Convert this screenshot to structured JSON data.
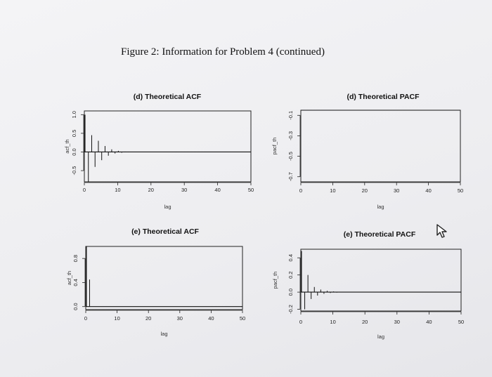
{
  "figure_title": "Figure 2: Information for Problem 4 (continued)",
  "icons": {
    "cursor": "mouse-pointer-icon"
  },
  "chart_data": [
    {
      "type": "bar",
      "title": "(d) Theoretical ACF",
      "xlabel": "lag",
      "ylabel": "acf_th",
      "xlim": [
        0,
        50
      ],
      "ylim": [
        -0.8,
        1.1
      ],
      "xticks": [
        0,
        10,
        20,
        30,
        40,
        50
      ],
      "yticks": [
        -0.5,
        0.0,
        0.5,
        1.0
      ],
      "xtick_labels": [
        "0",
        "10",
        "20",
        "30",
        "40",
        "50"
      ],
      "ytick_labels": [
        "-0.5",
        "0.0",
        "0.5",
        "1.0"
      ],
      "x": [
        0,
        1,
        2,
        3,
        4,
        5,
        6,
        7,
        8,
        9,
        10,
        11,
        12,
        13,
        14
      ],
      "values": [
        1.0,
        -0.8,
        0.45,
        -0.4,
        0.3,
        -0.22,
        0.16,
        -0.1,
        0.07,
        -0.04,
        0.03,
        -0.02,
        0.01,
        -0.01,
        0.005
      ],
      "hline": 0.0,
      "grid": false
    },
    {
      "type": "bar",
      "title": "(d) Theoretical PACF",
      "xlabel": "lag",
      "ylabel": "pacf_th",
      "xlim": [
        0,
        50
      ],
      "ylim": [
        -0.75,
        -0.05
      ],
      "xticks": [
        0,
        10,
        20,
        30,
        40,
        50
      ],
      "yticks": [
        -0.7,
        -0.5,
        -0.3,
        -0.1
      ],
      "xtick_labels": [
        "0",
        "10",
        "20",
        "30",
        "40",
        "50"
      ],
      "ytick_labels": [
        "-0.7",
        "-0.5",
        "-0.3",
        "-0.1"
      ],
      "x": [],
      "values": [],
      "hline": -0.05,
      "grid": false
    },
    {
      "type": "bar",
      "title": "(e) Theoretical ACF",
      "xlabel": "lag",
      "ylabel": "acf_th",
      "xlim": [
        0,
        50
      ],
      "ylim": [
        -0.05,
        1.0
      ],
      "xticks": [
        0,
        10,
        20,
        30,
        40,
        50
      ],
      "yticks": [
        0.0,
        0.4,
        0.8
      ],
      "xtick_labels": [
        "0",
        "10",
        "20",
        "30",
        "40",
        "50"
      ],
      "ytick_labels": [
        "0.0",
        "0.4",
        "0.8"
      ],
      "x": [
        0,
        1
      ],
      "values": [
        1.0,
        0.45
      ],
      "hline": 0.0,
      "grid": false
    },
    {
      "type": "bar",
      "title": "(e) Theoretical PACF",
      "xlabel": "lag",
      "ylabel": "pacf_th",
      "xlim": [
        0,
        50
      ],
      "ylim": [
        -0.22,
        0.5
      ],
      "xticks": [
        0,
        10,
        20,
        30,
        40,
        50
      ],
      "yticks": [
        -0.2,
        0.0,
        0.2,
        0.4
      ],
      "xtick_labels": [
        "0",
        "10",
        "20",
        "30",
        "40",
        "50"
      ],
      "ytick_labels": [
        "-0.2",
        "0.0",
        "0.2",
        "0.4"
      ],
      "x": [
        0,
        1,
        2,
        3,
        4,
        5,
        6,
        7,
        8,
        9,
        10,
        11,
        12
      ],
      "values": [
        0.48,
        -0.2,
        0.2,
        -0.08,
        0.06,
        -0.04,
        0.03,
        -0.02,
        0.015,
        -0.01,
        0.008,
        -0.005,
        0.003
      ],
      "hline": 0.0,
      "grid": false
    }
  ]
}
